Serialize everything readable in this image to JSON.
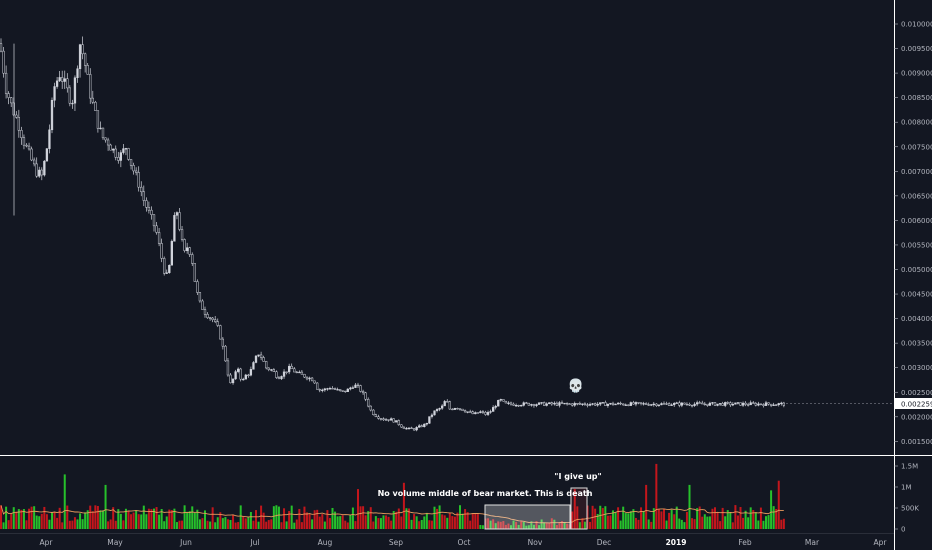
{
  "chart_data": {
    "type": "candlestick",
    "price_axis": {
      "ticks": [
        "0.010000",
        "0.009500",
        "0.009000",
        "0.008500",
        "0.008000",
        "0.007500",
        "0.007000",
        "0.006500",
        "0.006000",
        "0.005500",
        "0.005000",
        "0.004500",
        "0.004000",
        "0.003500",
        "0.003000",
        "0.002500",
        "0.002000",
        "0.001500"
      ],
      "range": [
        0.00115,
        0.0104
      ],
      "last_price": "0.002259"
    },
    "volume_axis": {
      "ticks": [
        "1.5M",
        "1M",
        "500K",
        "0"
      ],
      "range": [
        0,
        1600000
      ]
    },
    "time_axis": {
      "labels": [
        {
          "text": "Apr",
          "bold": false
        },
        {
          "text": "May",
          "bold": false
        },
        {
          "text": "Jun",
          "bold": false
        },
        {
          "text": "Jul",
          "bold": false
        },
        {
          "text": "Aug",
          "bold": false
        },
        {
          "text": "Sep",
          "bold": false
        },
        {
          "text": "Oct",
          "bold": false
        },
        {
          "text": "Nov",
          "bold": false
        },
        {
          "text": "Dec",
          "bold": false
        },
        {
          "text": "2019",
          "bold": true
        },
        {
          "text": "Feb",
          "bold": false
        },
        {
          "text": "Mar",
          "bold": false
        },
        {
          "text": "Apr",
          "bold": false
        }
      ]
    },
    "price_path": [
      [
        0,
        0.0096
      ],
      [
        6,
        0.0087
      ],
      [
        12,
        0.0083
      ],
      [
        18,
        0.008
      ],
      [
        24,
        0.0076
      ],
      [
        30,
        0.0073
      ],
      [
        36,
        0.007
      ],
      [
        42,
        0.0069
      ],
      [
        48,
        0.0076
      ],
      [
        54,
        0.0087
      ],
      [
        60,
        0.009
      ],
      [
        66,
        0.0087
      ],
      [
        72,
        0.0084
      ],
      [
        76,
        0.009
      ],
      [
        80,
        0.0096
      ],
      [
        84,
        0.0093
      ],
      [
        90,
        0.0086
      ],
      [
        96,
        0.0081
      ],
      [
        102,
        0.0077
      ],
      [
        108,
        0.0076
      ],
      [
        114,
        0.0074
      ],
      [
        120,
        0.0073
      ],
      [
        126,
        0.0075
      ],
      [
        132,
        0.0071
      ],
      [
        138,
        0.0068
      ],
      [
        144,
        0.0064
      ],
      [
        150,
        0.0061
      ],
      [
        156,
        0.0058
      ],
      [
        160,
        0.0054
      ],
      [
        164,
        0.005
      ],
      [
        168,
        0.0048
      ],
      [
        172,
        0.0056
      ],
      [
        176,
        0.0063
      ],
      [
        180,
        0.0058
      ],
      [
        184,
        0.0053
      ],
      [
        188,
        0.0055
      ],
      [
        192,
        0.0052
      ],
      [
        196,
        0.0046
      ],
      [
        200,
        0.0043
      ],
      [
        206,
        0.0041
      ],
      [
        212,
        0.004
      ],
      [
        218,
        0.0038
      ],
      [
        222,
        0.0035
      ],
      [
        226,
        0.0031
      ],
      [
        230,
        0.00265
      ],
      [
        234,
        0.0028
      ],
      [
        238,
        0.003
      ],
      [
        242,
        0.0027
      ],
      [
        246,
        0.00285
      ],
      [
        250,
        0.0029
      ],
      [
        254,
        0.0031
      ],
      [
        258,
        0.0033
      ],
      [
        262,
        0.0032
      ],
      [
        266,
        0.003
      ],
      [
        272,
        0.00295
      ],
      [
        278,
        0.0028
      ],
      [
        284,
        0.0029
      ],
      [
        290,
        0.003
      ],
      [
        296,
        0.0029
      ],
      [
        302,
        0.00285
      ],
      [
        308,
        0.0028
      ],
      [
        314,
        0.00275
      ],
      [
        318,
        0.00255
      ],
      [
        324,
        0.00255
      ],
      [
        330,
        0.0026
      ],
      [
        336,
        0.00255
      ],
      [
        342,
        0.0025
      ],
      [
        348,
        0.00255
      ],
      [
        354,
        0.00265
      ],
      [
        358,
        0.0026
      ],
      [
        362,
        0.0025
      ],
      [
        366,
        0.00235
      ],
      [
        370,
        0.00215
      ],
      [
        374,
        0.00205
      ],
      [
        378,
        0.002
      ],
      [
        384,
        0.00195
      ],
      [
        390,
        0.00195
      ],
      [
        396,
        0.0019
      ],
      [
        402,
        0.0018
      ],
      [
        408,
        0.00175
      ],
      [
        414,
        0.00175
      ],
      [
        420,
        0.0018
      ],
      [
        426,
        0.00185
      ],
      [
        430,
        0.002
      ],
      [
        434,
        0.0021
      ],
      [
        438,
        0.00215
      ],
      [
        442,
        0.0022
      ],
      [
        446,
        0.00235
      ],
      [
        450,
        0.00215
      ],
      [
        456,
        0.0022
      ],
      [
        462,
        0.00215
      ],
      [
        468,
        0.0021
      ],
      [
        474,
        0.00205
      ],
      [
        480,
        0.0021
      ],
      [
        486,
        0.00205
      ],
      [
        490,
        0.0021
      ],
      [
        494,
        0.0022
      ],
      [
        498,
        0.0023
      ],
      [
        502,
        0.00235
      ],
      [
        504,
        0.00226
      ]
    ],
    "annotations": [
      {
        "text": "No volume middle of bear market. This is death"
      },
      {
        "text": "\"I give up\""
      },
      {
        "text": "💀"
      }
    ]
  },
  "colors": {
    "background": "#131722",
    "candle": "#d1d4dc",
    "vol_up": "#26c12b",
    "vol_down": "#c4161c",
    "ma_line": "#e89a5c",
    "grid": "#1e2230"
  }
}
